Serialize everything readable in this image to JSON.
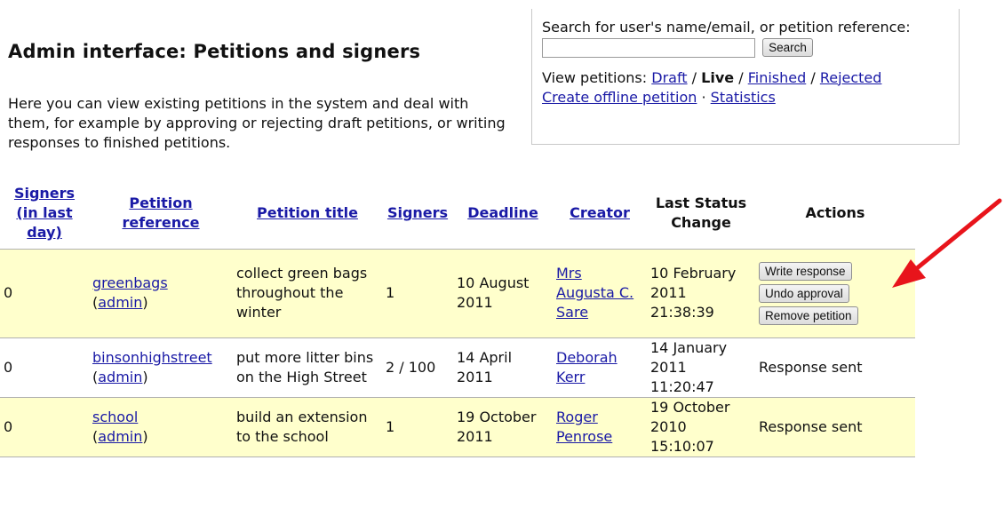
{
  "header": {
    "title": "Admin interface: Petitions and signers",
    "intro": "Here you can view existing petitions in the system and deal with them, for example by approving or rejecting draft petitions, or writing responses to finished petitions."
  },
  "search": {
    "label": "Search for user's name/email, or petition reference:",
    "value": "",
    "button_label": "Search"
  },
  "view": {
    "prefix": "View petitions:",
    "draft": "Draft",
    "live": "Live",
    "finished": "Finished",
    "rejected": "Rejected",
    "sep": "/",
    "create_offline": "Create offline petition",
    "dot": "·",
    "statistics": "Statistics"
  },
  "table": {
    "headers": {
      "signers_last_day": "Signers (in last day)",
      "reference": "Petition reference",
      "title": "Petition title",
      "signers": "Signers",
      "deadline": "Deadline",
      "creator": "Creator",
      "last_status": "Last Status Change",
      "actions": "Actions"
    },
    "admin_label": "admin",
    "rows": [
      {
        "signers_last_day": "0",
        "reference": "greenbags",
        "title": "collect green bags throughout the winter",
        "signers": "1",
        "deadline": "10 August 2011",
        "creator": "Mrs Augusta C. Sare",
        "last_status": "10 February 2011 21:38:39",
        "buttons": [
          "Write response",
          "Undo approval",
          "Remove petition"
        ],
        "action_text": ""
      },
      {
        "signers_last_day": "0",
        "reference": "binsonhighstreet",
        "title": "put more litter bins on the High Street",
        "signers": "2 / 100",
        "deadline": "14 April 2011",
        "creator": "Deborah Kerr",
        "last_status": "14 January 2011 11:20:47",
        "buttons": [],
        "action_text": "Response sent"
      },
      {
        "signers_last_day": "0",
        "reference": "school",
        "title": "build an extension to the school",
        "signers": "1",
        "deadline": "19 October 2011",
        "creator": "Roger Penrose",
        "last_status": "19 October 2010 15:10:07",
        "buttons": [],
        "action_text": "Response sent"
      }
    ]
  },
  "colors": {
    "link": "#1a1aa6",
    "row_highlight": "#ffffcc",
    "arrow": "#e8141b"
  }
}
